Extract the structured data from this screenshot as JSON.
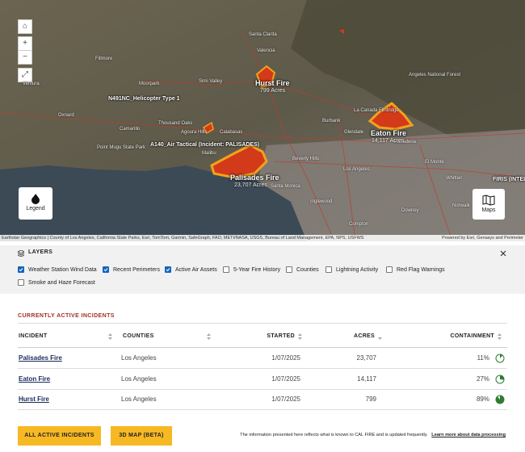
{
  "map": {
    "places": [
      "Santa Clarita",
      "Simi Valley",
      "Thousand Oaks",
      "Oxnard",
      "Ventura",
      "Calabasas",
      "Malibu",
      "Burbank",
      "Glendale",
      "La Canada Flintridge",
      "Beverly Hills",
      "Los Angeles",
      "Santa Monica",
      "Inglewood",
      "Downey",
      "Whittier",
      "Angeles National Forest",
      "Point Mugu State Park",
      "Moorpark",
      "Camarillo",
      "Agoura Hills",
      "Pasadena",
      "El Monte",
      "Compton",
      "Norwalk",
      "Fillmore",
      "Valencia"
    ],
    "fires": [
      {
        "name": "Hurst Fire",
        "acres": "799 Acres"
      },
      {
        "name": "Eaton Fire",
        "acres": "14,117 Acres"
      },
      {
        "name": "Palisades Fire",
        "acres": "23,707 Acres"
      }
    ],
    "aircraft": [
      "N491NC_Helicopter Type 1",
      "A140_Air Tactical (Incident: PALISADES)",
      "FIRIS (INTEL"
    ],
    "legend_button": "Legend",
    "maps_button": "Maps",
    "attribution": "Earthstar Geographics | County of Los Angeles, California State Parks, Esri, TomTom, Garmin, SafeGraph, FAO, METI/NASA, USGS, Bureau of Land Management, EPA, NPS, USFWS",
    "powered_by": "Powered by Esri, Genasys and Perimeter"
  },
  "layers": {
    "title": "LAYERS",
    "items": [
      {
        "label": "Weather Station Wind Data",
        "checked": true
      },
      {
        "label": "Recent Perimeters",
        "checked": true
      },
      {
        "label": "Active Air Assets",
        "checked": true
      },
      {
        "label": "5-Year Fire History",
        "checked": false
      },
      {
        "label": "Counties",
        "checked": false
      },
      {
        "label": "Lightning Activity",
        "checked": false
      },
      {
        "label": "Red Flag Warnings",
        "checked": false
      },
      {
        "label": "Smoke and Haze Forecast",
        "checked": false
      }
    ]
  },
  "table": {
    "title": "CURRENTLY ACTIVE INCIDENTS",
    "columns": [
      "INCIDENT",
      "COUNTIES",
      "STARTED",
      "ACRES",
      "CONTAINMENT"
    ],
    "rows": [
      {
        "incident": "Palisades Fire",
        "county": "Los Angeles",
        "started": "1/07/2025",
        "acres": "23,707",
        "containment": {
          "value": 11,
          "label": "11%"
        }
      },
      {
        "incident": "Eaton Fire",
        "county": "Los Angeles",
        "started": "1/07/2025",
        "acres": "14,117",
        "containment": {
          "value": 27,
          "label": "27%"
        }
      },
      {
        "incident": "Hurst Fire",
        "county": "Los Angeles",
        "started": "1/07/2025",
        "acres": "799",
        "containment": {
          "value": 89,
          "label": "89%"
        }
      }
    ]
  },
  "footer": {
    "buttons": [
      "ALL ACTIVE INCIDENTS",
      "3D MAP (BETA)"
    ],
    "note": "The information presented here reflects what is known to CAL FIRE and is updated frequently.",
    "link": "Learn more about data processing"
  }
}
